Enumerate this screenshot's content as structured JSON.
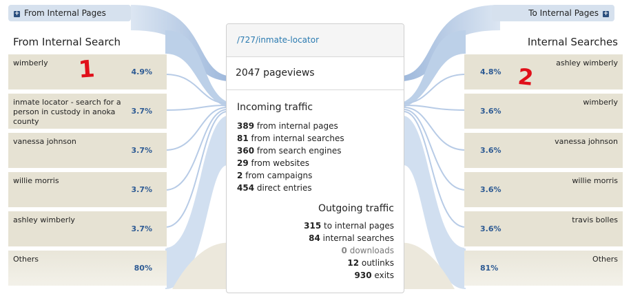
{
  "left_header": {
    "label": "From Internal Pages",
    "icon": "plus-square-icon"
  },
  "right_header": {
    "label": "To Internal Pages",
    "icon": "plus-square-icon"
  },
  "left_panel": {
    "title": "From Internal Search",
    "rows": [
      {
        "label": "wimberly",
        "pct": "4.9%"
      },
      {
        "label": "inmate locator - search for a person in custody in anoka county",
        "pct": "3.7%"
      },
      {
        "label": "vanessa johnson",
        "pct": "3.7%"
      },
      {
        "label": "willie morris",
        "pct": "3.7%"
      },
      {
        "label": "ashley wimberly",
        "pct": "3.7%"
      },
      {
        "label": "Others",
        "pct": "80%"
      }
    ]
  },
  "right_panel": {
    "title": "Internal Searches",
    "rows": [
      {
        "label": "ashley wimberly",
        "pct": "4.8%"
      },
      {
        "label": "wimberly",
        "pct": "3.6%"
      },
      {
        "label": "vanessa johnson",
        "pct": "3.6%"
      },
      {
        "label": "willie morris",
        "pct": "3.6%"
      },
      {
        "label": "travis bolles",
        "pct": "3.6%"
      },
      {
        "label": "Others",
        "pct": "81%"
      }
    ]
  },
  "center": {
    "url": "/727/inmate-locator",
    "pageviews": "2047 pageviews",
    "incoming_title": "Incoming traffic",
    "incoming": [
      {
        "value": "389",
        "text": " from internal pages"
      },
      {
        "value": "81",
        "text": " from internal searches"
      },
      {
        "value": "360",
        "text": " from search engines"
      },
      {
        "value": "29",
        "text": " from websites"
      },
      {
        "value": "2",
        "text": " from campaigns"
      },
      {
        "value": "454",
        "text": " direct entries"
      }
    ],
    "outgoing_title": "Outgoing traffic",
    "outgoing": [
      {
        "value": "315",
        "text": " to internal pages"
      },
      {
        "value": "84",
        "text": " internal searches"
      },
      {
        "value": "0",
        "text": " downloads"
      },
      {
        "value": "12",
        "text": " outlinks"
      },
      {
        "value": "930",
        "text": " exits"
      }
    ]
  },
  "annotations": {
    "left": "1",
    "right": "2",
    "color": "#e0101a"
  },
  "colors": {
    "flow_blue": "#a9c0df",
    "row_beige": "#e6e2d3",
    "pct_blue": "#2d5a93",
    "link_blue": "#2a7ab0"
  }
}
